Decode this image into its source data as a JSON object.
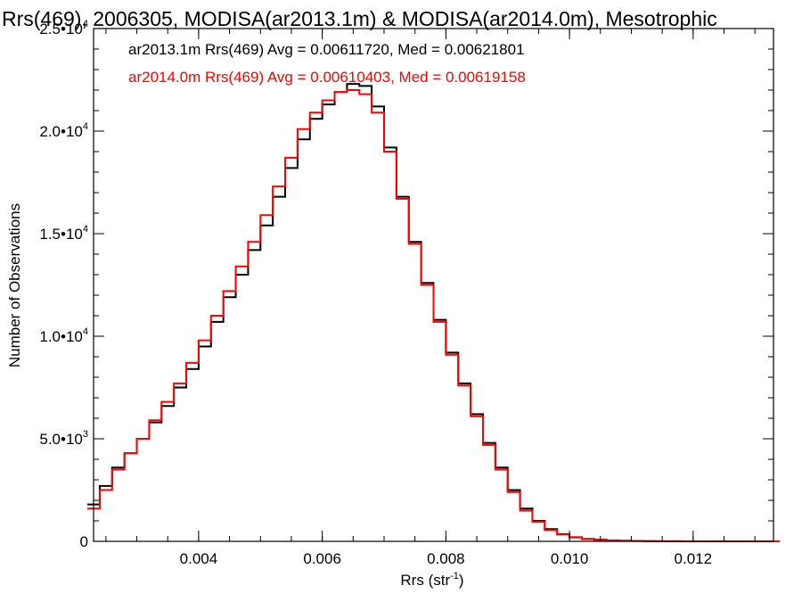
{
  "chart_data": {
    "type": "line",
    "title": "Rrs(469), 2006305, MODISA(ar2013.1m) & MODISA(ar2014.0m), Mesotrophic",
    "xlabel": "Rrs (str",
    "xlabel_sup": "-1",
    "xlabel_close": ")",
    "ylabel": "Number of Observations",
    "xlim": [
      0.0023,
      0.0133
    ],
    "ylim": [
      0,
      25000
    ],
    "xticks": [
      {
        "value": 0.004,
        "label": "0.004"
      },
      {
        "value": 0.006,
        "label": "0.006"
      },
      {
        "value": 0.008,
        "label": "0.008"
      },
      {
        "value": 0.01,
        "label": "0.010"
      },
      {
        "value": 0.012,
        "label": "0.012"
      }
    ],
    "yticks": [
      {
        "value": 0,
        "mant": "0",
        "exp": ""
      },
      {
        "value": 5000,
        "mant": "5.0•10",
        "exp": "3"
      },
      {
        "value": 10000,
        "mant": "1.0•10",
        "exp": "4"
      },
      {
        "value": 15000,
        "mant": "1.5•10",
        "exp": "4"
      },
      {
        "value": 20000,
        "mant": "2.0•10",
        "exp": "4"
      },
      {
        "value": 25000,
        "mant": "2.5•10",
        "exp": "4"
      }
    ],
    "series": [
      {
        "name": "ar2013.1m Rrs(469) Avg = 0.00611720, Med = 0.00621801",
        "color": "#000000",
        "x": [
          0.0023,
          0.0025,
          0.0027,
          0.0029,
          0.0031,
          0.0033,
          0.0035,
          0.0037,
          0.0039,
          0.0041,
          0.0043,
          0.0045,
          0.0047,
          0.0049,
          0.0051,
          0.0053,
          0.0055,
          0.0057,
          0.0059,
          0.0061,
          0.0063,
          0.0065,
          0.0067,
          0.0069,
          0.0071,
          0.0073,
          0.0075,
          0.0077,
          0.0079,
          0.0081,
          0.0083,
          0.0085,
          0.0087,
          0.0089,
          0.0091,
          0.0093,
          0.0095,
          0.0097,
          0.0099,
          0.0101,
          0.0103,
          0.0105,
          0.0107,
          0.0109,
          0.0111,
          0.0113,
          0.0115,
          0.0117,
          0.0119,
          0.0121,
          0.0123,
          0.0125,
          0.0127,
          0.0129,
          0.0131,
          0.0133
        ],
        "y": [
          1800,
          2700,
          3600,
          4300,
          5000,
          5800,
          6600,
          7500,
          8400,
          9500,
          10700,
          11900,
          13000,
          14200,
          15400,
          16800,
          18200,
          19600,
          20600,
          21300,
          21900,
          22300,
          22200,
          21200,
          19200,
          16800,
          14600,
          12600,
          10800,
          9200,
          7700,
          6200,
          4800,
          3600,
          2500,
          1600,
          1000,
          600,
          350,
          200,
          120,
          80,
          50,
          30,
          20,
          10,
          5,
          3,
          2,
          1,
          1,
          0,
          0,
          0,
          0,
          0
        ]
      },
      {
        "name": "ar2014.0m Rrs(469) Avg = 0.00610403, Med = 0.00619158",
        "color": "#ff0000",
        "x": [
          0.0023,
          0.0025,
          0.0027,
          0.0029,
          0.0031,
          0.0033,
          0.0035,
          0.0037,
          0.0039,
          0.0041,
          0.0043,
          0.0045,
          0.0047,
          0.0049,
          0.0051,
          0.0053,
          0.0055,
          0.0057,
          0.0059,
          0.0061,
          0.0063,
          0.0065,
          0.0067,
          0.0069,
          0.0071,
          0.0073,
          0.0075,
          0.0077,
          0.0079,
          0.0081,
          0.0083,
          0.0085,
          0.0087,
          0.0089,
          0.0091,
          0.0093,
          0.0095,
          0.0097,
          0.0099,
          0.0101,
          0.0103,
          0.0105,
          0.0107,
          0.0109,
          0.0111,
          0.0113,
          0.0115,
          0.0117,
          0.0119,
          0.0121,
          0.0123,
          0.0125,
          0.0127,
          0.0129,
          0.0131,
          0.0133
        ],
        "y": [
          1600,
          2500,
          3500,
          4300,
          5000,
          5900,
          6800,
          7700,
          8700,
          9800,
          11000,
          12200,
          13400,
          14600,
          15900,
          17300,
          18700,
          20100,
          20900,
          21500,
          21900,
          22000,
          21800,
          20900,
          19000,
          16700,
          14500,
          12500,
          10700,
          9100,
          7600,
          6100,
          4700,
          3500,
          2400,
          1500,
          950,
          550,
          330,
          190,
          110,
          70,
          45,
          28,
          18,
          10,
          5,
          3,
          2,
          1,
          1,
          0,
          0,
          0,
          0,
          0
        ]
      }
    ],
    "grid": false,
    "legend": "top-left, in-plot text"
  }
}
